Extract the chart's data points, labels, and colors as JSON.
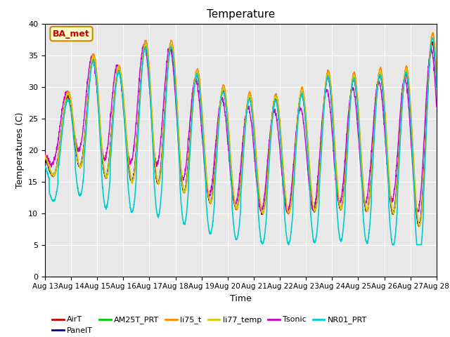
{
  "title": "Temperature",
  "xlabel": "Time",
  "ylabel": "Temperatures (C)",
  "ylim": [
    0,
    40
  ],
  "background_color": "#e8e8e8",
  "annotation_text": "BA_met",
  "annotation_color": "#cc0000",
  "annotation_bg": "#ffffcc",
  "annotation_border": "#cc8800",
  "series": [
    {
      "name": "AirT",
      "color": "#cc0000",
      "lw": 1.0,
      "zorder": 5
    },
    {
      "name": "PanelT",
      "color": "#000099",
      "lw": 1.0,
      "zorder": 4
    },
    {
      "name": "AM25T_PRT",
      "color": "#00cc00",
      "lw": 1.0,
      "zorder": 3
    },
    {
      "name": "li75_t",
      "color": "#ff8800",
      "lw": 1.0,
      "zorder": 6
    },
    {
      "name": "li77_temp",
      "color": "#cccc00",
      "lw": 1.0,
      "zorder": 6
    },
    {
      "name": "Tsonic",
      "color": "#cc00cc",
      "lw": 1.0,
      "zorder": 4
    },
    {
      "name": "NR01_PRT",
      "color": "#00cccc",
      "lw": 1.2,
      "zorder": 7
    }
  ],
  "xtick_labels": [
    "Aug 13",
    "Aug 14",
    "Aug 15",
    "Aug 16",
    "Aug 17",
    "Aug 18",
    "Aug 19",
    "Aug 20",
    "Aug 21",
    "Aug 22",
    "Aug 23",
    "Aug 24",
    "Aug 25",
    "Aug 26",
    "Aug 27",
    "Aug 28"
  ],
  "ytick_values": [
    0,
    5,
    10,
    15,
    20,
    25,
    30,
    35,
    40
  ],
  "grid_color": "#ffffff",
  "grid_lw": 0.8,
  "figsize": [
    6.4,
    4.8
  ],
  "dpi": 100
}
